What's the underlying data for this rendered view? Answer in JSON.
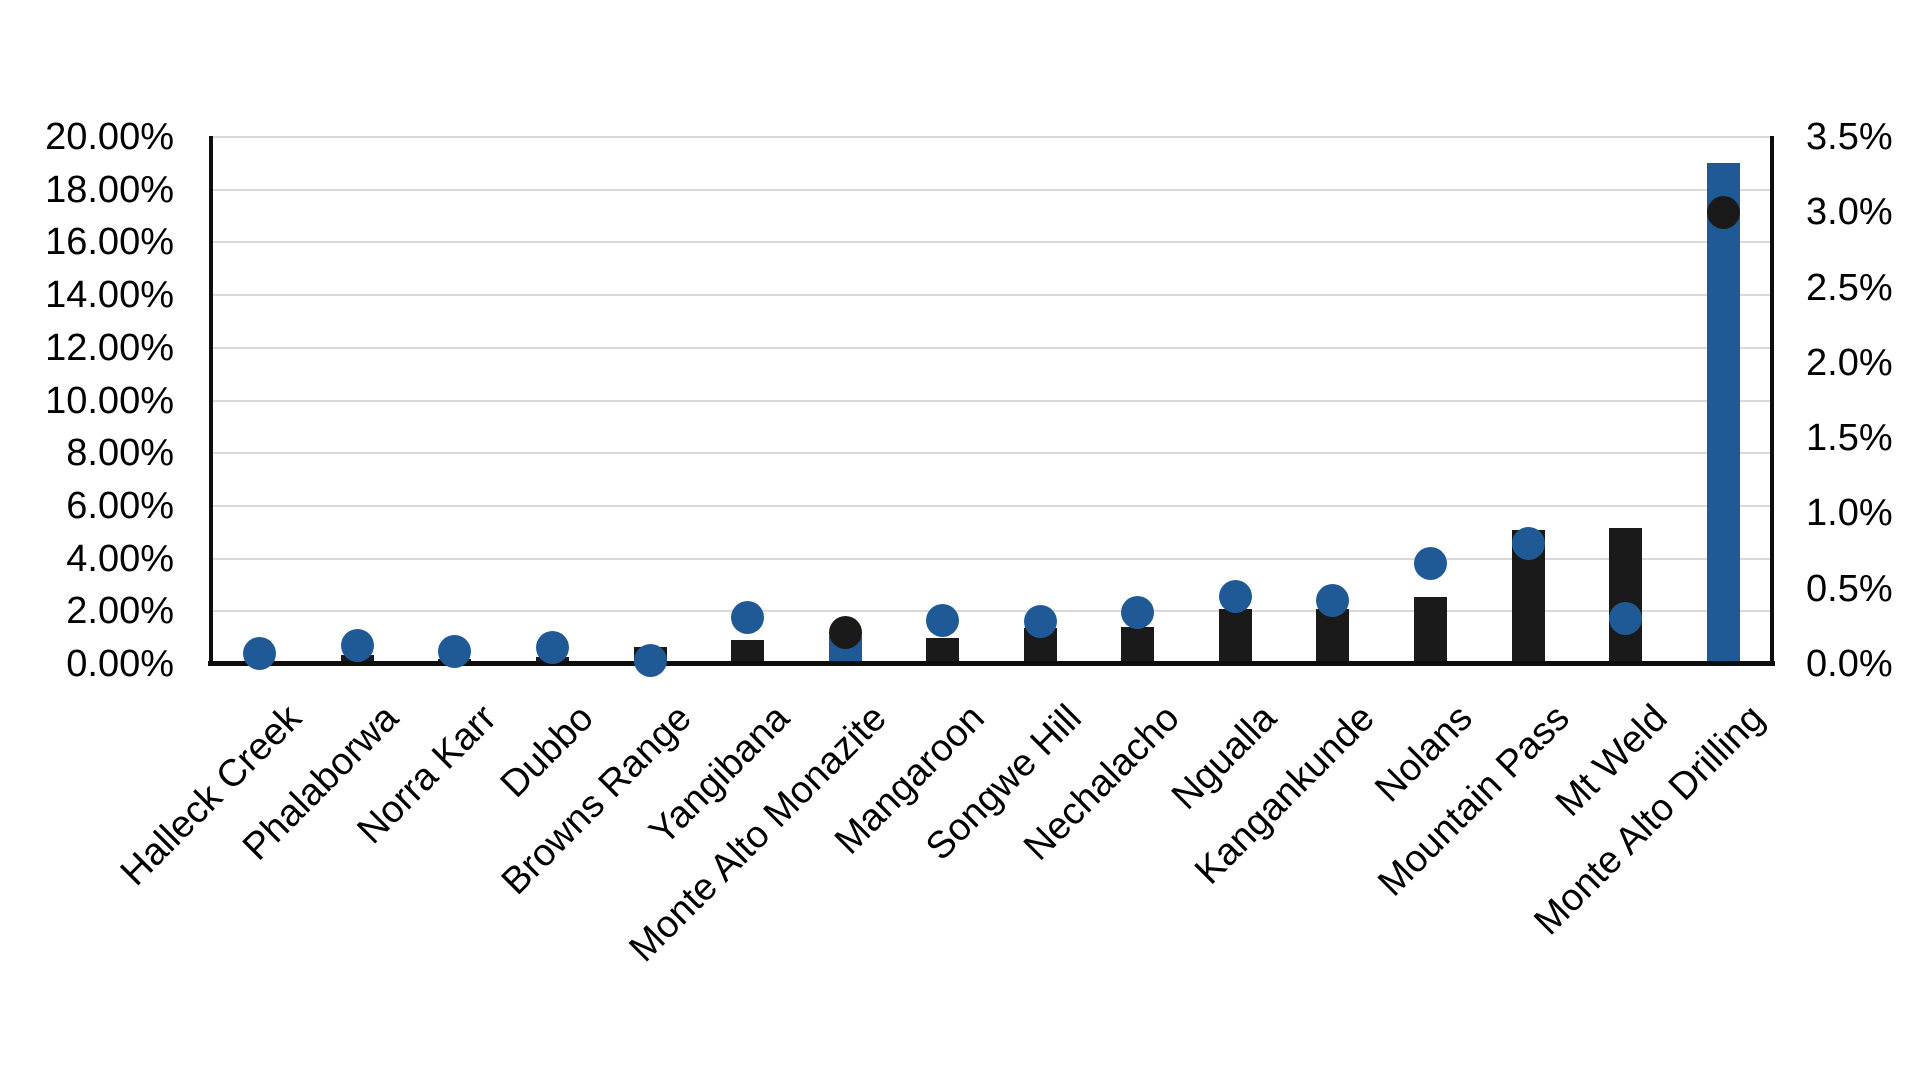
{
  "chart_data": {
    "type": "bar",
    "subtype": "dual-axis bar + scatter",
    "title": "",
    "xlabel": "",
    "ylabel_left": "",
    "ylabel_right": "",
    "grid": true,
    "legend": "none",
    "categories": [
      "Halleck Creek",
      "Phalaborwa",
      "Norra Karr",
      "Dubbo",
      "Browns Range",
      "Yangibana",
      "Monte Alto Monazite",
      "Mangaroon",
      "Songwe Hill",
      "Nechalacho",
      "Ngualla",
      "Kangankunde",
      "Nolans",
      "Mountain Pass",
      "Mt Weld",
      "Monte Alto Drilling"
    ],
    "series": [
      {
        "name": "bar-series-left-axis",
        "marker": "bar",
        "axis": "left",
        "values": [
          0.1,
          0.35,
          0.2,
          0.25,
          0.65,
          0.92,
          1.05,
          1.0,
          1.35,
          1.4,
          2.1,
          2.1,
          2.55,
          5.1,
          5.15,
          19.0
        ],
        "point_colors": [
          "#1a1a1a",
          "#1a1a1a",
          "#1a1a1a",
          "#1a1a1a",
          "#1a1a1a",
          "#1a1a1a",
          "#1f5a96",
          "#1a1a1a",
          "#1a1a1a",
          "#1a1a1a",
          "#1a1a1a",
          "#1a1a1a",
          "#1a1a1a",
          "#1a1a1a",
          "#1a1a1a",
          "#1f5a96"
        ]
      },
      {
        "name": "dot-series-right-axis",
        "marker": "dot",
        "axis": "right",
        "values": [
          0.07,
          0.12,
          0.08,
          0.11,
          0.02,
          0.31,
          0.21,
          0.29,
          0.28,
          0.34,
          0.45,
          0.42,
          0.67,
          0.8,
          0.3,
          3.0
        ],
        "point_colors": [
          "#1f5a96",
          "#1f5a96",
          "#1f5a96",
          "#1f5a96",
          "#1f5a96",
          "#1f5a96",
          "#1a1a1a",
          "#1f5a96",
          "#1f5a96",
          "#1f5a96",
          "#1f5a96",
          "#1f5a96",
          "#1f5a96",
          "#1f5a96",
          "#1f5a96",
          "#1a1a1a"
        ]
      }
    ],
    "left_axis": {
      "min": 0,
      "max": 20,
      "tick_labels": [
        "20.00%",
        "18.00%",
        "16.00%",
        "14.00%",
        "12.00%",
        "10.00%",
        "8.00%",
        "6.00%",
        "4.00%",
        "2.00%",
        "0.00%"
      ]
    },
    "right_axis": {
      "min": 0,
      "max": 3.5,
      "tick_labels": [
        "3.5%",
        "3.0%",
        "2.5%",
        "2.0%",
        "1.5%",
        "1.0%",
        "0.5%",
        "0.0%"
      ]
    },
    "highlighted_categories": [
      "Monte Alto Monazite",
      "Monte Alto Drilling"
    ],
    "colors": {
      "bar_default": "#1a1a1a",
      "accent_blue": "#1f5a96",
      "gridline": "#d9d9d9",
      "axis_line": "#0d0d0d",
      "text": "#000000",
      "background": "#ffffff"
    }
  }
}
